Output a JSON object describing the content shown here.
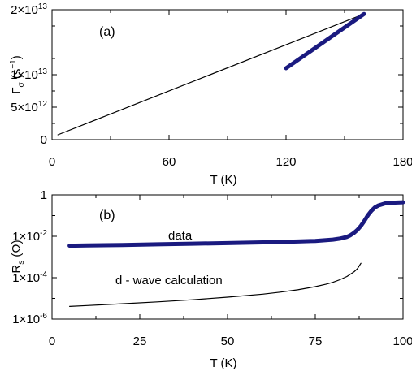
{
  "chart_data": [
    {
      "type": "line",
      "panel_label": "(a)",
      "xlabel": "T (K)",
      "ylabel": {
        "main": "Γ",
        "sub": "σ",
        "rest": " (s",
        "sup": "−1",
        "close": ")"
      },
      "xlim": [
        0,
        180
      ],
      "ylim": [
        0,
        20000000000000.0
      ],
      "x_ticks": [
        0,
        60,
        120,
        180
      ],
      "x_tick_labels": [
        "0",
        "60",
        "120",
        "180"
      ],
      "y_ticks": [
        0,
        5000000000000.0,
        10000000000000.0,
        20000000000000.0
      ],
      "y_tick_labels": [
        {
          "base": "0",
          "exp": ""
        },
        {
          "base": "5×10",
          "exp": "12"
        },
        {
          "base": "1×10",
          "exp": "13"
        },
        {
          "base": "2×10",
          "exp": "13"
        }
      ],
      "series": [
        {
          "style": "thin",
          "color": "#000000",
          "x": [
            3,
            160
          ],
          "y": [
            750000000000.0,
            19350000000000.0
          ]
        },
        {
          "style": "thick",
          "color": "#1a1a80",
          "x": [
            120,
            160
          ],
          "y": [
            11000000000000.0,
            19350000000000.0
          ]
        }
      ]
    },
    {
      "type": "line",
      "panel_label": "(b)",
      "xlabel": "T (K)",
      "ylabel": {
        "main": "R",
        "sub": "s",
        "rest": " (Ω)"
      },
      "xlim": [
        0,
        100
      ],
      "ylim": [
        1e-06,
        1
      ],
      "yscale": "log",
      "x_ticks": [
        0,
        25,
        50,
        75,
        100
      ],
      "x_tick_labels": [
        "0",
        "25",
        "50",
        "75",
        "100"
      ],
      "y_ticks": [
        1e-06,
        0.0001,
        0.01,
        1
      ],
      "y_tick_labels": [
        {
          "base": "1×10",
          "exp": "-6"
        },
        {
          "base": "1×10",
          "exp": "-4"
        },
        {
          "base": "1×10",
          "exp": "-2"
        },
        {
          "base": "1",
          "exp": ""
        }
      ],
      "series": [
        {
          "name": "data",
          "style": "thick",
          "color": "#1a1a80",
          "x": [
            5,
            10,
            20,
            30,
            40,
            50,
            60,
            70,
            75,
            80,
            82,
            84,
            85,
            86,
            87,
            88,
            89,
            90,
            91,
            92,
            93,
            95,
            97,
            100
          ],
          "y": [
            0.0035,
            0.0036,
            0.0038,
            0.0041,
            0.0044,
            0.0047,
            0.0051,
            0.0056,
            0.006,
            0.0069,
            0.0077,
            0.0093,
            0.0112,
            0.0145,
            0.0205,
            0.032,
            0.056,
            0.105,
            0.17,
            0.25,
            0.31,
            0.39,
            0.42,
            0.44
          ]
        },
        {
          "name": "d - wave calculation",
          "style": "thin",
          "color": "#000000",
          "x": [
            5,
            10,
            20,
            30,
            40,
            50,
            60,
            65,
            70,
            75,
            78,
            80,
            82,
            84,
            86,
            87,
            88
          ],
          "y": [
            4.1e-06,
            4.5e-06,
            5.5e-06,
            6.8e-06,
            8.6e-06,
            1.14e-05,
            1.6e-05,
            2e-05,
            2.6e-05,
            3.7e-05,
            4.8e-05,
            6e-05,
            8e-05,
            0.000115,
            0.00019,
            0.00027,
            0.0005
          ]
        }
      ]
    }
  ]
}
